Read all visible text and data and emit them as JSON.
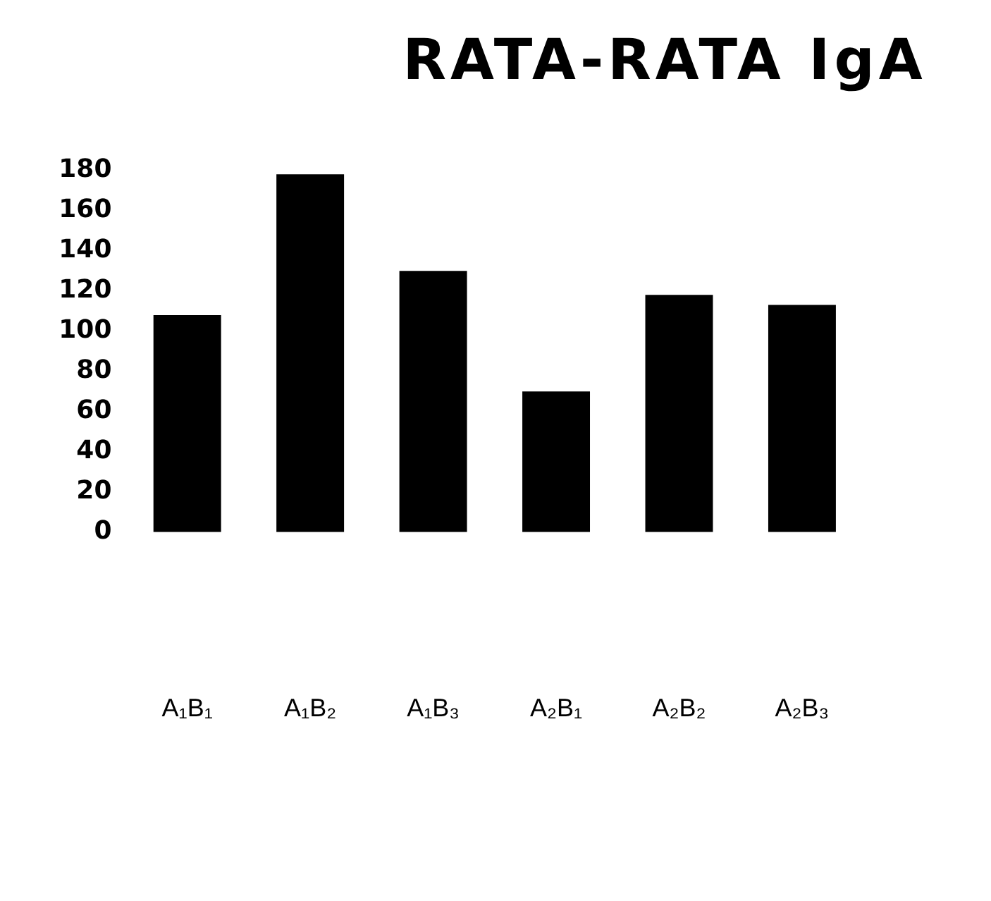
{
  "chart_data": {
    "type": "bar",
    "title": "RATA-RATA IgA",
    "categories": [
      "A₁B₁",
      "A₁B₂",
      "A₁B₃",
      "A₂B₁",
      "A₂B₂",
      "A₂B₃"
    ],
    "values": [
      108,
      178,
      130,
      70,
      118,
      113
    ],
    "color": "#000000",
    "ylim": [
      0,
      180
    ],
    "yticks": [
      0,
      20,
      40,
      60,
      80,
      100,
      120,
      140,
      160,
      180
    ],
    "grid": false,
    "legend": false
  }
}
